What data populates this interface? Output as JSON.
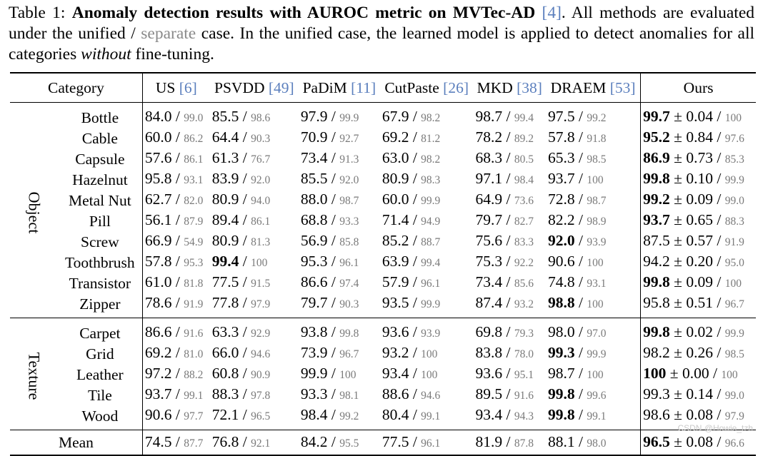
{
  "caption": {
    "label": "Table 1:",
    "title_bold": "Anomaly detection results with AUROC metric on MVTec-AD",
    "ref": "[4]",
    "text_1": ". All methods are evaluated under the unified / ",
    "separate": "separate",
    "text_2": " case. In the unified case, the learned model is applied to detect anomalies for all categories ",
    "without": "without",
    "text_3": " fine-tuning."
  },
  "headers": {
    "category": "Category",
    "methods": [
      {
        "name": "US ",
        "ref": "[6]"
      },
      {
        "name": "PSVDD ",
        "ref": "[49]"
      },
      {
        "name": "PaDiM ",
        "ref": "[11]"
      },
      {
        "name": "CutPaste ",
        "ref": "[26]"
      },
      {
        "name": "MKD ",
        "ref": "[38]"
      },
      {
        "name": "DRAEM ",
        "ref": "[53]"
      },
      {
        "name": "Ours",
        "ref": ""
      }
    ]
  },
  "groups": [
    {
      "label": "Object",
      "rows": [
        {
          "category": "Bottle",
          "cells": [
            [
              "84.0",
              "99.0",
              false
            ],
            [
              "85.5",
              "98.6",
              false
            ],
            [
              "97.9",
              "99.9",
              false
            ],
            [
              "67.9",
              "98.2",
              false
            ],
            [
              "98.7",
              "99.4",
              false
            ],
            [
              "97.5",
              "99.2",
              false
            ]
          ],
          "ours": [
            "99.7",
            "0.04",
            "100",
            true
          ]
        },
        {
          "category": "Cable",
          "cells": [
            [
              "60.0",
              "86.2",
              false
            ],
            [
              "64.4",
              "90.3",
              false
            ],
            [
              "70.9",
              "92.7",
              false
            ],
            [
              "69.2",
              "81.2",
              false
            ],
            [
              "78.2",
              "89.2",
              false
            ],
            [
              "57.8",
              "91.8",
              false
            ]
          ],
          "ours": [
            "95.2",
            "0.84",
            "97.6",
            true
          ]
        },
        {
          "category": "Capsule",
          "cells": [
            [
              "57.6",
              "86.1",
              false
            ],
            [
              "61.3",
              "76.7",
              false
            ],
            [
              "73.4",
              "91.3",
              false
            ],
            [
              "63.0",
              "98.2",
              false
            ],
            [
              "68.3",
              "80.5",
              false
            ],
            [
              "65.3",
              "98.5",
              false
            ]
          ],
          "ours": [
            "86.9",
            "0.73",
            "85.3",
            true
          ]
        },
        {
          "category": "Hazelnut",
          "cells": [
            [
              "95.8",
              "93.1",
              false
            ],
            [
              "83.9",
              "92.0",
              false
            ],
            [
              "85.5",
              "92.0",
              false
            ],
            [
              "80.9",
              "98.3",
              false
            ],
            [
              "97.1",
              "98.4",
              false
            ],
            [
              "93.7",
              "100",
              false
            ]
          ],
          "ours": [
            "99.8",
            "0.10",
            "99.9",
            true
          ]
        },
        {
          "category": "Metal Nut",
          "cells": [
            [
              "62.7",
              "82.0",
              false
            ],
            [
              "80.9",
              "94.0",
              false
            ],
            [
              "88.0",
              "98.7",
              false
            ],
            [
              "60.0",
              "99.9",
              false
            ],
            [
              "64.9",
              "73.6",
              false
            ],
            [
              "72.8",
              "98.7",
              false
            ]
          ],
          "ours": [
            "99.2",
            "0.09",
            "99.0",
            true
          ]
        },
        {
          "category": "Pill",
          "cells": [
            [
              "56.1",
              "87.9",
              false
            ],
            [
              "89.4",
              "86.1",
              false
            ],
            [
              "68.8",
              "93.3",
              false
            ],
            [
              "71.4",
              "94.9",
              false
            ],
            [
              "79.7",
              "82.7",
              false
            ],
            [
              "82.2",
              "98.9",
              false
            ]
          ],
          "ours": [
            "93.7",
            "0.65",
            "88.3",
            true
          ]
        },
        {
          "category": "Screw",
          "cells": [
            [
              "66.9",
              "54.9",
              false
            ],
            [
              "80.9",
              "81.3",
              false
            ],
            [
              "56.9",
              "85.8",
              false
            ],
            [
              "85.2",
              "88.7",
              false
            ],
            [
              "75.6",
              "83.3",
              false
            ],
            [
              "92.0",
              "93.9",
              true
            ]
          ],
          "ours": [
            "87.5",
            "0.57",
            "91.9",
            false
          ]
        },
        {
          "category": "Toothbrush",
          "cells": [
            [
              "57.8",
              "95.3",
              false
            ],
            [
              "99.4",
              "100",
              true
            ],
            [
              "95.3",
              "96.1",
              false
            ],
            [
              "63.9",
              "99.4",
              false
            ],
            [
              "75.3",
              "92.2",
              false
            ],
            [
              "90.6",
              "100",
              false
            ]
          ],
          "ours": [
            "94.2",
            "0.20",
            "95.0",
            false
          ]
        },
        {
          "category": "Transistor",
          "cells": [
            [
              "61.0",
              "81.8",
              false
            ],
            [
              "77.5",
              "91.5",
              false
            ],
            [
              "86.6",
              "97.4",
              false
            ],
            [
              "57.9",
              "96.1",
              false
            ],
            [
              "73.4",
              "85.6",
              false
            ],
            [
              "74.8",
              "93.1",
              false
            ]
          ],
          "ours": [
            "99.8",
            "0.09",
            "100",
            true
          ]
        },
        {
          "category": "Zipper",
          "cells": [
            [
              "78.6",
              "91.9",
              false
            ],
            [
              "77.8",
              "97.9",
              false
            ],
            [
              "79.7",
              "90.3",
              false
            ],
            [
              "93.5",
              "99.9",
              false
            ],
            [
              "87.4",
              "93.2",
              false
            ],
            [
              "98.8",
              "100",
              true
            ]
          ],
          "ours": [
            "95.8",
            "0.51",
            "96.7",
            false
          ]
        }
      ]
    },
    {
      "label": "Texture",
      "rows": [
        {
          "category": "Carpet",
          "cells": [
            [
              "86.6",
              "91.6",
              false
            ],
            [
              "63.3",
              "92.9",
              false
            ],
            [
              "93.8",
              "99.8",
              false
            ],
            [
              "93.6",
              "93.9",
              false
            ],
            [
              "69.8",
              "79.3",
              false
            ],
            [
              "98.0",
              "97.0",
              false
            ]
          ],
          "ours": [
            "99.8",
            "0.02",
            "99.9",
            true
          ]
        },
        {
          "category": "Grid",
          "cells": [
            [
              "69.2",
              "81.0",
              false
            ],
            [
              "66.0",
              "94.6",
              false
            ],
            [
              "73.9",
              "96.7",
              false
            ],
            [
              "93.2",
              "100",
              false
            ],
            [
              "83.8",
              "78.0",
              false
            ],
            [
              "99.3",
              "99.9",
              true
            ]
          ],
          "ours": [
            "98.2",
            "0.26",
            "98.5",
            false
          ]
        },
        {
          "category": "Leather",
          "cells": [
            [
              "97.2",
              "88.2",
              false
            ],
            [
              "60.8",
              "90.9",
              false
            ],
            [
              "99.9",
              "100",
              false
            ],
            [
              "93.4",
              "100",
              false
            ],
            [
              "93.6",
              "95.1",
              false
            ],
            [
              "98.7",
              "100",
              false
            ]
          ],
          "ours": [
            "100",
            "0.00",
            "100",
            true
          ]
        },
        {
          "category": "Tile",
          "cells": [
            [
              "93.7",
              "99.1",
              false
            ],
            [
              "88.3",
              "97.8",
              false
            ],
            [
              "93.3",
              "98.1",
              false
            ],
            [
              "88.6",
              "94.6",
              false
            ],
            [
              "89.5",
              "91.6",
              false
            ],
            [
              "99.8",
              "99.6",
              true
            ]
          ],
          "ours": [
            "99.3",
            "0.14",
            "99.0",
            false
          ]
        },
        {
          "category": "Wood",
          "cells": [
            [
              "90.6",
              "97.7",
              false
            ],
            [
              "72.1",
              "96.5",
              false
            ],
            [
              "98.4",
              "99.2",
              false
            ],
            [
              "80.4",
              "99.1",
              false
            ],
            [
              "93.4",
              "94.3",
              false
            ],
            [
              "99.8",
              "99.1",
              true
            ]
          ],
          "ours": [
            "98.6",
            "0.08",
            "97.9",
            false
          ]
        }
      ]
    }
  ],
  "mean": {
    "category": "Mean",
    "cells": [
      [
        "74.5",
        "87.7",
        false
      ],
      [
        "76.8",
        "92.1",
        false
      ],
      [
        "84.2",
        "95.5",
        false
      ],
      [
        "77.5",
        "96.1",
        false
      ],
      [
        "81.9",
        "87.8",
        false
      ],
      [
        "88.1",
        "98.0",
        false
      ]
    ],
    "ours": [
      "96.5",
      "0.08",
      "96.6",
      true
    ]
  },
  "pm": "±",
  "slash": " / ",
  "watermark": "CSDN @Howie_tzh"
}
